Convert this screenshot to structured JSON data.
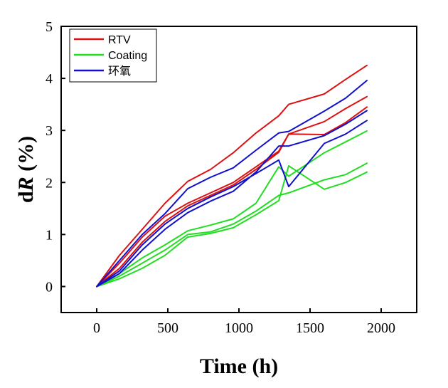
{
  "chart_data": {
    "type": "line",
    "xlabel": "Time (h)",
    "ylabel_prefix": "d",
    "ylabel_var": "R",
    "ylabel_suffix": " (%)",
    "xlim": [
      -250,
      2250
    ],
    "ylim": [
      -0.5,
      5
    ],
    "xticks": [
      0,
      500,
      1000,
      1500,
      2000
    ],
    "yticks": [
      0,
      1,
      2,
      3,
      4,
      5
    ],
    "grid": false,
    "legend_position": "top-left",
    "legend": [
      {
        "label": "RTV",
        "color": "#dd1111"
      },
      {
        "label": "Coating",
        "color": "#22dd22"
      },
      {
        "label": "环氧",
        "color": "#1111cc"
      }
    ],
    "series": [
      {
        "group": "RTV",
        "color": "#dd1111",
        "points": [
          [
            0,
            0
          ],
          [
            160,
            0.45
          ],
          [
            320,
            0.95
          ],
          [
            480,
            1.35
          ],
          [
            640,
            1.6
          ],
          [
            800,
            1.8
          ],
          [
            960,
            2.0
          ],
          [
            1120,
            2.3
          ],
          [
            1280,
            2.6
          ],
          [
            1350,
            2.93
          ],
          [
            1600,
            2.92
          ],
          [
            1750,
            3.15
          ],
          [
            1900,
            3.45
          ]
        ]
      },
      {
        "group": "RTV",
        "color": "#dd1111",
        "points": [
          [
            0,
            0
          ],
          [
            160,
            0.35
          ],
          [
            320,
            0.85
          ],
          [
            480,
            1.25
          ],
          [
            640,
            1.55
          ],
          [
            800,
            1.75
          ],
          [
            960,
            1.95
          ],
          [
            1120,
            2.25
          ],
          [
            1280,
            2.58
          ],
          [
            1350,
            2.93
          ],
          [
            1600,
            3.17
          ],
          [
            1750,
            3.42
          ],
          [
            1900,
            3.65
          ]
        ]
      },
      {
        "group": "RTV",
        "color": "#dd1111",
        "points": [
          [
            0,
            0
          ],
          [
            160,
            0.6
          ],
          [
            320,
            1.1
          ],
          [
            480,
            1.6
          ],
          [
            640,
            2.02
          ],
          [
            800,
            2.25
          ],
          [
            960,
            2.57
          ],
          [
            1120,
            2.95
          ],
          [
            1280,
            3.28
          ],
          [
            1350,
            3.5
          ],
          [
            1600,
            3.7
          ],
          [
            1750,
            3.98
          ],
          [
            1900,
            4.25
          ]
        ]
      },
      {
        "group": "Coating",
        "color": "#22dd22",
        "points": [
          [
            0,
            0
          ],
          [
            160,
            0.25
          ],
          [
            320,
            0.55
          ],
          [
            480,
            0.8
          ],
          [
            640,
            1.07
          ],
          [
            800,
            1.18
          ],
          [
            960,
            1.3
          ],
          [
            1120,
            1.6
          ],
          [
            1280,
            2.3
          ],
          [
            1350,
            2.12
          ],
          [
            1600,
            2.57
          ],
          [
            1750,
            2.78
          ],
          [
            1900,
            2.99
          ]
        ]
      },
      {
        "group": "Coating",
        "color": "#22dd22",
        "points": [
          [
            0,
            0
          ],
          [
            160,
            0.2
          ],
          [
            320,
            0.45
          ],
          [
            480,
            0.7
          ],
          [
            640,
            1.0
          ],
          [
            800,
            1.05
          ],
          [
            960,
            1.2
          ],
          [
            1120,
            1.45
          ],
          [
            1280,
            1.75
          ],
          [
            1350,
            1.8
          ],
          [
            1600,
            2.05
          ],
          [
            1750,
            2.15
          ],
          [
            1900,
            2.37
          ]
        ]
      },
      {
        "group": "Coating",
        "color": "#22dd22",
        "points": [
          [
            0,
            0
          ],
          [
            160,
            0.15
          ],
          [
            320,
            0.35
          ],
          [
            480,
            0.6
          ],
          [
            640,
            0.95
          ],
          [
            800,
            1.02
          ],
          [
            960,
            1.13
          ],
          [
            1120,
            1.38
          ],
          [
            1280,
            1.65
          ],
          [
            1350,
            2.32
          ],
          [
            1600,
            1.87
          ],
          [
            1750,
            2.0
          ],
          [
            1900,
            2.2
          ]
        ]
      },
      {
        "group": "环氧",
        "color": "#1111cc",
        "points": [
          [
            0,
            0
          ],
          [
            160,
            0.5
          ],
          [
            320,
            1.0
          ],
          [
            480,
            1.4
          ],
          [
            640,
            1.88
          ],
          [
            800,
            2.1
          ],
          [
            960,
            2.28
          ],
          [
            1120,
            2.62
          ],
          [
            1280,
            2.95
          ],
          [
            1350,
            2.98
          ],
          [
            1600,
            3.37
          ],
          [
            1750,
            3.62
          ],
          [
            1900,
            3.96
          ]
        ]
      },
      {
        "group": "环氧",
        "color": "#1111cc",
        "points": [
          [
            0,
            0
          ],
          [
            160,
            0.3
          ],
          [
            320,
            0.8
          ],
          [
            480,
            1.2
          ],
          [
            640,
            1.5
          ],
          [
            800,
            1.72
          ],
          [
            960,
            1.92
          ],
          [
            1120,
            2.17
          ],
          [
            1280,
            2.43
          ],
          [
            1350,
            1.92
          ],
          [
            1600,
            2.75
          ],
          [
            1750,
            2.93
          ],
          [
            1900,
            3.19
          ]
        ]
      },
      {
        "group": "环氧",
        "color": "#1111cc",
        "points": [
          [
            0,
            0
          ],
          [
            160,
            0.25
          ],
          [
            320,
            0.7
          ],
          [
            480,
            1.1
          ],
          [
            640,
            1.42
          ],
          [
            800,
            1.64
          ],
          [
            960,
            1.83
          ],
          [
            1120,
            2.2
          ],
          [
            1280,
            2.7
          ],
          [
            1350,
            2.7
          ],
          [
            1600,
            2.9
          ],
          [
            1750,
            3.12
          ],
          [
            1900,
            3.38
          ]
        ]
      }
    ]
  }
}
